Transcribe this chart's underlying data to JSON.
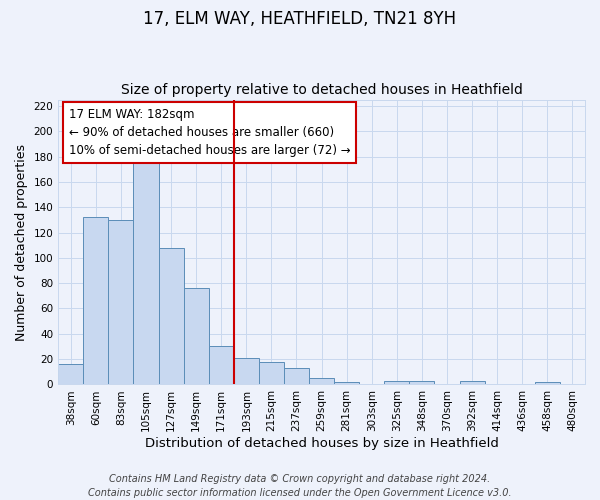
{
  "title": "17, ELM WAY, HEATHFIELD, TN21 8YH",
  "subtitle": "Size of property relative to detached houses in Heathfield",
  "xlabel": "Distribution of detached houses by size in Heathfield",
  "ylabel": "Number of detached properties",
  "categories": [
    "38sqm",
    "60sqm",
    "83sqm",
    "105sqm",
    "127sqm",
    "149sqm",
    "171sqm",
    "193sqm",
    "215sqm",
    "237sqm",
    "259sqm",
    "281sqm",
    "303sqm",
    "325sqm",
    "348sqm",
    "370sqm",
    "392sqm",
    "414sqm",
    "436sqm",
    "458sqm",
    "480sqm"
  ],
  "values": [
    16,
    132,
    130,
    183,
    108,
    76,
    30,
    21,
    18,
    13,
    5,
    2,
    0,
    3,
    3,
    0,
    3,
    0,
    0,
    2,
    0
  ],
  "bar_color": "#c8d8f0",
  "bar_edge_color": "#5b8db8",
  "grid_color": "#c8d8ee",
  "background_color": "#eef2fb",
  "vline_color": "#cc0000",
  "vline_idx": 6.5,
  "annotation_text": "17 ELM WAY: 182sqm\n← 90% of detached houses are smaller (660)\n10% of semi-detached houses are larger (72) →",
  "annotation_box_facecolor": "#ffffff",
  "annotation_box_edgecolor": "#cc0000",
  "ylim": [
    0,
    225
  ],
  "yticks": [
    0,
    20,
    40,
    60,
    80,
    100,
    120,
    140,
    160,
    180,
    200,
    220
  ],
  "footer": "Contains HM Land Registry data © Crown copyright and database right 2024.\nContains public sector information licensed under the Open Government Licence v3.0.",
  "title_fontsize": 12,
  "subtitle_fontsize": 10,
  "xlabel_fontsize": 9.5,
  "ylabel_fontsize": 9,
  "tick_fontsize": 7.5,
  "annotation_fontsize": 8.5,
  "footer_fontsize": 7
}
